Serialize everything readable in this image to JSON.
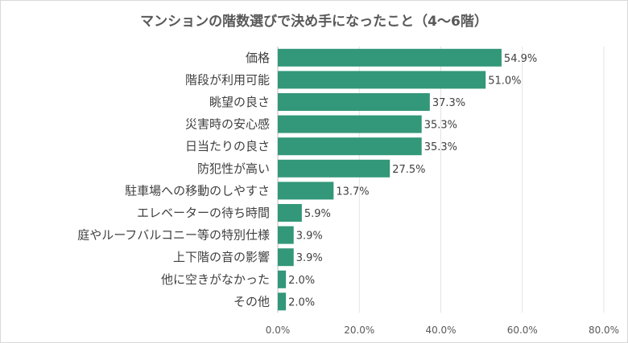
{
  "chart_data": {
    "type": "bar",
    "orientation": "horizontal",
    "title": "マンションの階数選びで決め手になったこと（4〜6階）",
    "categories": [
      "価格",
      "階段が利用可能",
      "眺望の良さ",
      "災害時の安心感",
      "日当たりの良さ",
      "防犯性が高い",
      "駐車場への移動のしやすさ",
      "エレベーターの待ち時間",
      "庭やルーフバルコニー等の特別仕様",
      "上下階の音の影響",
      "他に空きがなかった",
      "その他"
    ],
    "values": [
      54.9,
      51.0,
      37.3,
      35.3,
      35.3,
      27.5,
      13.7,
      5.9,
      3.9,
      3.9,
      2.0,
      2.0
    ],
    "data_labels": [
      "54.9%",
      "51.0%",
      "37.3%",
      "35.3%",
      "35.3%",
      "27.5%",
      "13.7%",
      "5.9%",
      "3.9%",
      "3.9%",
      "2.0%",
      "2.0%"
    ],
    "xlim": [
      0,
      80
    ],
    "xticks": [
      "0.0%",
      "20.0%",
      "40.0%",
      "60.0%",
      "80.0%"
    ],
    "grid": true,
    "bar_color": "#339779",
    "legend": "none"
  }
}
